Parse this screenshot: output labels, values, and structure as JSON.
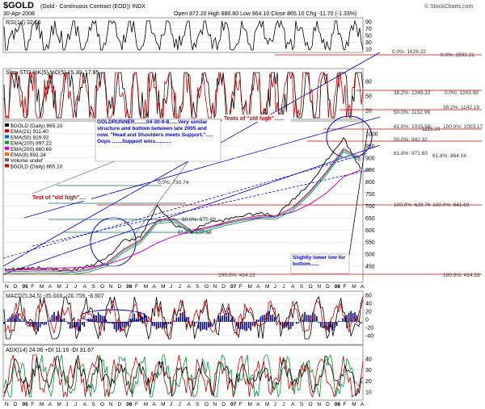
{
  "header": {
    "symbol": "$GOLD",
    "name": "(Gold - Continuous Contract (EOD)) INDX",
    "date": "30-Apr-2008",
    "quote": "Open 872.20  High 880.80  Low 864.10  Close 865.10  Chg -11.70 (-1.33%)",
    "brand": "© StockCharts.com"
  },
  "rsi": {
    "label": "RSI(14) 32.63",
    "ticks": [
      "90",
      "70",
      "50",
      "30",
      "10"
    ],
    "fib_labels": [
      "0.0%: 1626.22",
      "0.0%: 1592.21"
    ]
  },
  "sto": {
    "label": "Slow STO %K(5) %D(5) 15.30, 17.85",
    "ticks": [
      "80",
      "50",
      "20"
    ],
    "fib_labels": [
      "38.2%: 1249.32",
      "0.0%: 1243.00",
      "50.0%: 1132.96",
      "38.2%: 1142.19"
    ]
  },
  "price": {
    "legend": [
      {
        "text": "$GOLD (Daily) 865.10",
        "color": "#000000"
      },
      {
        "text": "EMA(21) 911.40",
        "color": "#cc0000"
      },
      {
        "text": "EMA(50) 919.92",
        "color": "#0066cc"
      },
      {
        "text": "EMA(100) 897.22",
        "color": "#009933"
      },
      {
        "text": "EMA(200) 860.69",
        "color": "#cc00cc"
      },
      {
        "text": "EMA(8) 892.24",
        "color": "#ff6600"
      },
      {
        "text": "Volume undef",
        "color": "#666666"
      },
      {
        "text": "$GOLD (Daily) 865.10",
        "color": "#cc0000"
      }
    ],
    "ticks": [
      "1000",
      "950",
      "900",
      "850",
      "800",
      "750",
      "700",
      "650",
      "600",
      "550",
      "500",
      "450"
    ],
    "fib_labels": [
      "61.8%: 1015.58",
      "50.0%: 942.32",
      "61.8%: 971.63",
      "0.0%: 730.74",
      "50.0%: 575.69",
      "61.8%: 537.58",
      "100.0%: 639.76",
      "100.0%: 641.83",
      "100.0%: 414.13",
      "100.0%: 414.13",
      "61.8%: 864.16",
      "100.0%: 1003.17",
      "1115.29"
    ],
    "annotations": {
      "main": "GOLDRUNNER........04-30-0-8......Very similar structure and bottom between late 2005 and now.    \"Head and Shoulders meets Support.\"..... Oops .......Support wins...........",
      "tests_top": "Tests of \"old high\"......",
      "test_left": "Test of \"old high\"....",
      "lower_low": "Slightly lower low for bottom......"
    }
  },
  "macd": {
    "label": "MACD(5,34,5) -35.666, -26.759, -8.907",
    "ticks": [
      "60",
      "40",
      "20",
      "0",
      "-20",
      "-40"
    ]
  },
  "adx": {
    "label": "ADX(14) 24.06  +DI 11.16  -DI 31.67",
    "ticks": [
      "40",
      "30",
      "20",
      "10"
    ]
  },
  "xaxis": {
    "labels": [
      "N",
      "D",
      "05",
      "F",
      "M",
      "A",
      "M",
      "J",
      "J",
      "A",
      "S",
      "O",
      "N",
      "D",
      "06",
      "F",
      "M",
      "A",
      "M",
      "J",
      "J",
      "A",
      "S",
      "O",
      "N",
      "D",
      "07",
      "F",
      "M",
      "A",
      "M",
      "J",
      "J",
      "A",
      "S",
      "O",
      "N",
      "D",
      "08",
      "F",
      "M",
      "A"
    ]
  },
  "colors": {
    "price_line": "#000000",
    "rsi_line": "#000000",
    "sto_k": "#000000",
    "sto_d": "#cc0000",
    "macd_line": "#000000",
    "macd_signal": "#cc0000",
    "macd_hist": "#000080",
    "adx": "#000000",
    "plus_di": "#009933",
    "minus_di": "#cc0000",
    "annotation_blue": "#0000cc",
    "annotation_red": "#cc0000",
    "trendline": "#0000cc",
    "support": "#990000"
  },
  "chart_data": [
    {
      "type": "line",
      "title": "$GOLD (Daily) 865.10",
      "ylim": [
        420,
        1040
      ],
      "x": [
        "2004-11",
        "2005-01",
        "2005-03",
        "2005-05",
        "2005-07",
        "2005-09",
        "2005-11",
        "2006-01",
        "2006-03",
        "2006-05",
        "2006-07",
        "2006-09",
        "2006-11",
        "2007-01",
        "2007-03",
        "2007-05",
        "2007-07",
        "2007-09",
        "2007-11",
        "2008-01",
        "2008-03",
        "2008-04"
      ],
      "series": [
        {
          "name": "$GOLD (Daily)",
          "values": [
            428,
            425,
            432,
            424,
            421,
            440,
            470,
            550,
            565,
            700,
            620,
            590,
            630,
            640,
            660,
            670,
            660,
            730,
            800,
            900,
            1000,
            865
          ]
        },
        {
          "name": "EMA(200)",
          "values": [
            420,
            424,
            428,
            430,
            431,
            434,
            445,
            470,
            500,
            540,
            570,
            590,
            610,
            625,
            640,
            650,
            658,
            675,
            710,
            760,
            830,
            860
          ]
        }
      ]
    },
    {
      "type": "line",
      "title": "RSI(14) 32.63",
      "ylim": [
        10,
        90
      ],
      "series": [
        {
          "name": "RSI(14)",
          "values": [
            55,
            60,
            45,
            52,
            48,
            62,
            66,
            70,
            58,
            74,
            40,
            55,
            60,
            50,
            58,
            55,
            52,
            68,
            72,
            65,
            70,
            32.63
          ]
        }
      ]
    }
  ]
}
